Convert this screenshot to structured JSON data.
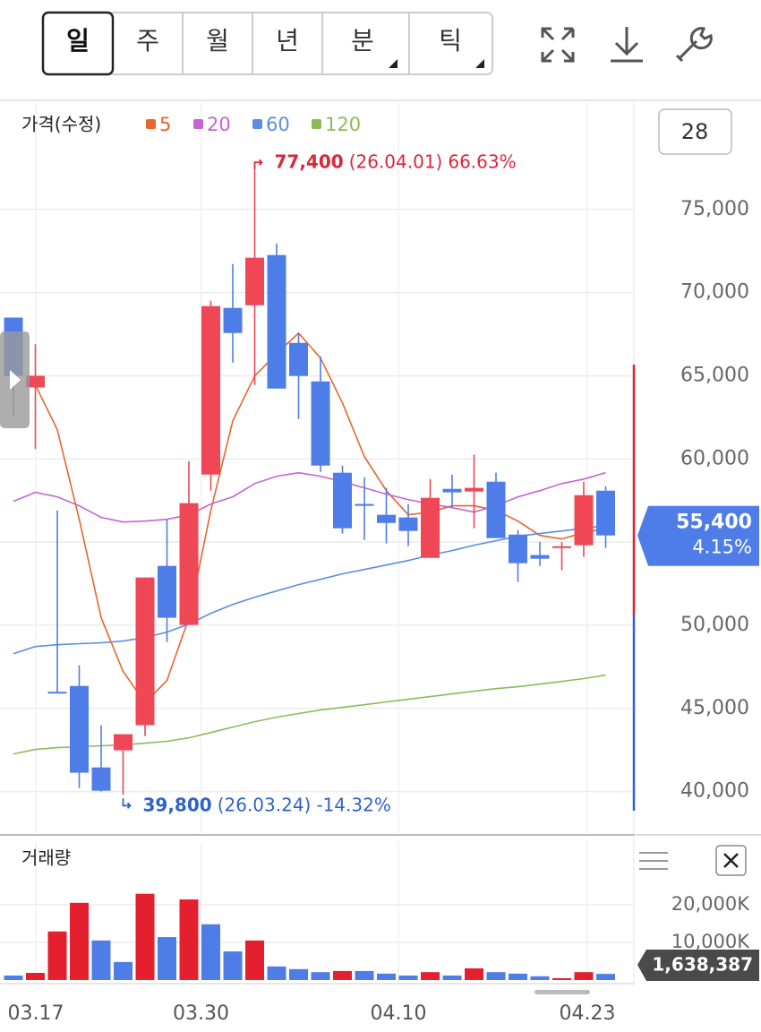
{
  "toolbar": {
    "tabs": [
      "일",
      "주",
      "월",
      "년",
      "분",
      "틱"
    ]
  },
  "chart_data": [
    {
      "type": "candlestick",
      "title": "가격(수정)",
      "visible_count": "28",
      "categories": [
        "03.17",
        null,
        null,
        null,
        null,
        null,
        null,
        null,
        null,
        "03.30",
        null,
        null,
        null,
        null,
        null,
        null,
        null,
        null,
        "04.10",
        null,
        null,
        null,
        null,
        null,
        null,
        null,
        null,
        "04.23"
      ],
      "open": [
        68500,
        64300,
        46000,
        46350,
        41450,
        42480,
        43990,
        53570,
        50020,
        59060,
        69080,
        69240,
        72260,
        66980,
        64660,
        59170,
        57290,
        56640,
        56480,
        54050,
        58200,
        58040,
        58630,
        55450,
        54220,
        54650,
        54810,
        58090
      ],
      "high": [
        68500,
        66900,
        56900,
        47590,
        43990,
        43450,
        52870,
        56370,
        59870,
        69510,
        71720,
        77400,
        72960,
        67570,
        66170,
        59600,
        58900,
        58260,
        57290,
        58790,
        59060,
        60250,
        59170,
        55720,
        55020,
        55000,
        58630,
        58360
      ],
      "low": [
        62600,
        60600,
        45900,
        40200,
        40000,
        39800,
        43340,
        48990,
        50020,
        58090,
        65790,
        64450,
        64230,
        62400,
        59220,
        55510,
        55130,
        54920,
        54760,
        54050,
        57070,
        55830,
        55240,
        52600,
        53570,
        53300,
        54110,
        54650
      ],
      "close": [
        65000,
        65000,
        45900,
        41130,
        40050,
        43450,
        52870,
        50450,
        57340,
        69190,
        67570,
        72100,
        64230,
        64990,
        59600,
        55830,
        57180,
        56150,
        55670,
        57660,
        57990,
        58260,
        55240,
        53730,
        54000,
        54750,
        57820,
        55400
      ],
      "up_color": "#ef4756",
      "down_color": "#4f7de8",
      "series": [
        {
          "name": "5",
          "color": "#e8652c",
          "values": [
            null,
            64450,
            61760,
            56370,
            50450,
            47220,
            45330,
            46680,
            50450,
            56910,
            62290,
            64990,
            66330,
            67570,
            66060,
            63370,
            60140,
            58090,
            56640,
            56800,
            57180,
            57180,
            56910,
            56260,
            55400,
            55190,
            55560,
            55830
          ]
        },
        {
          "name": "20",
          "color": "#c463d6",
          "values": [
            57450,
            57990,
            57720,
            57180,
            56480,
            56210,
            56260,
            56370,
            56640,
            57290,
            57720,
            58520,
            58960,
            59170,
            58960,
            58630,
            58260,
            57880,
            57560,
            57290,
            57070,
            56800,
            57180,
            57720,
            58090,
            58520,
            58790,
            59170
          ]
        },
        {
          "name": "60",
          "color": "#5b8ee0",
          "values": [
            48290,
            48720,
            48830,
            48890,
            48940,
            49050,
            49260,
            49590,
            50070,
            50720,
            51250,
            51690,
            52060,
            52440,
            52760,
            53090,
            53350,
            53620,
            53890,
            54220,
            54490,
            54810,
            55080,
            55350,
            55510,
            55670,
            55830,
            55990
          ]
        },
        {
          "name": "120",
          "color": "#8dbb5a",
          "values": [
            42260,
            42530,
            42640,
            42690,
            42750,
            42800,
            42910,
            43020,
            43230,
            43550,
            43880,
            44200,
            44470,
            44690,
            44900,
            45060,
            45220,
            45390,
            45550,
            45710,
            45870,
            46030,
            46190,
            46300,
            46460,
            46620,
            46790,
            47000
          ]
        }
      ],
      "ylim": [
        37500,
        81400
      ],
      "yticks": [
        {
          "value": 40000,
          "label": "40,000"
        },
        {
          "value": 45000,
          "label": "45,000"
        },
        {
          "value": 50000,
          "label": "50,000"
        },
        {
          "value": 55000,
          "label": "55,000"
        },
        {
          "value": 60000,
          "label": "60,000"
        },
        {
          "value": 65000,
          "label": "65,000"
        },
        {
          "value": 70000,
          "label": "70,000"
        },
        {
          "value": 75000,
          "label": "75,000"
        }
      ],
      "grid": true,
      "last_label": "55,400",
      "last_change": "4.15%",
      "annotations": [
        {
          "value": "77,400",
          "date": "(26.04.01)",
          "change": "66.63%",
          "color": "#d8283a"
        },
        {
          "value": "39,800",
          "date": "(26.03.24)",
          "change": "-14.32%",
          "color": "#2e63c8"
        }
      ]
    },
    {
      "type": "bar",
      "title": "거래량",
      "values": [
        1200000,
        1900000,
        12900000,
        20500000,
        10500000,
        4800000,
        22900000,
        11400000,
        21400000,
        14800000,
        7600000,
        10500000,
        3600000,
        2900000,
        2100000,
        2400000,
        2400000,
        1700000,
        1200000,
        2100000,
        1200000,
        3100000,
        2100000,
        1700000,
        1000000,
        500000,
        2100000,
        1638387
      ],
      "bar_colors": [
        "#4f7de8",
        "#e5202e",
        "#e5202e",
        "#e5202e",
        "#4f7de8",
        "#4f7de8",
        "#e5202e",
        "#4f7de8",
        "#e5202e",
        "#4f7de8",
        "#4f7de8",
        "#e5202e",
        "#4f7de8",
        "#4f7de8",
        "#4f7de8",
        "#e5202e",
        "#4f7de8",
        "#4f7de8",
        "#4f7de8",
        "#e5202e",
        "#4f7de8",
        "#e5202e",
        "#4f7de8",
        "#4f7de8",
        "#4f7de8",
        "#e5202e",
        "#e5202e",
        "#4f7de8"
      ],
      "ylim": [
        0,
        28300000
      ],
      "yticks": [
        {
          "value": 10000000,
          "label": "10,000K"
        },
        {
          "value": 20000000,
          "label": "20,000K"
        }
      ],
      "last_label": "1,638,387"
    }
  ]
}
